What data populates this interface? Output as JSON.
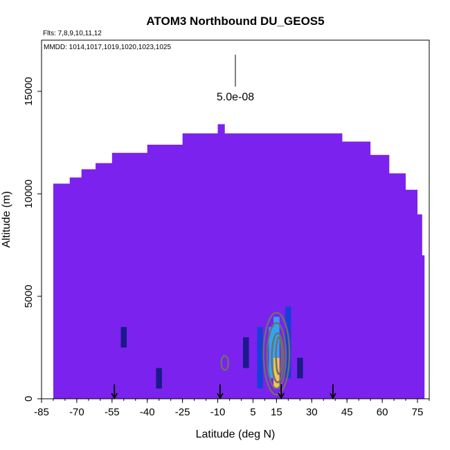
{
  "chart_data": {
    "type": "heatmap",
    "title": "ATOM3 Northbound DU_GEOS5",
    "annotations": {
      "flights": "Flts: 7,8,9,10,11,12",
      "dates": "MMDD: 1014,1017,1019,1020,1023,1025",
      "scale_label": "5.0e-08"
    },
    "xlabel": "Latitude (deg N)",
    "ylabel": "Altitude (m)",
    "xlim": [
      -85,
      80
    ],
    "ylim": [
      0,
      17500
    ],
    "x_ticks": [
      -85,
      -70,
      -55,
      -40,
      -25,
      -10,
      5,
      15,
      30,
      45,
      60,
      75
    ],
    "x_tick_labels": [
      "-85",
      "-70",
      "-55",
      "-40",
      "-25",
      "-10",
      "5",
      "15",
      "30",
      "45",
      "60",
      "75"
    ],
    "y_ticks": [
      0,
      5000,
      10000,
      15000
    ],
    "y_tick_labels": [
      "0",
      "5000",
      "10000",
      "15000"
    ],
    "grid": false,
    "colors": {
      "background_field": "#7b22ee",
      "low": "#1a1a8a",
      "mid": "#1840d8",
      "high": "#2ea6ee",
      "peak": "#f2c64a",
      "contour": "#6e6e6e"
    },
    "domain_top_profile": [
      {
        "lat": -80,
        "alt": 10500
      },
      {
        "lat": -73,
        "alt": 10800
      },
      {
        "lat": -68,
        "alt": 11200
      },
      {
        "lat": -62,
        "alt": 11500
      },
      {
        "lat": -55,
        "alt": 12000
      },
      {
        "lat": -40,
        "alt": 12400
      },
      {
        "lat": -25,
        "alt": 12950
      },
      {
        "lat": -12,
        "alt": 12950
      },
      {
        "lat": -10,
        "alt": 13400
      },
      {
        "lat": -7,
        "alt": 12950
      },
      {
        "lat": 40,
        "alt": 12950
      },
      {
        "lat": 43,
        "alt": 12550
      },
      {
        "lat": 55,
        "alt": 11900
      },
      {
        "lat": 63,
        "alt": 11000
      },
      {
        "lat": 70,
        "alt": 10200
      },
      {
        "lat": 75,
        "alt": 9000
      },
      {
        "lat": 77,
        "alt": 7000
      },
      {
        "lat": 78,
        "alt": 0
      }
    ],
    "enhanced_cells": [
      {
        "lat": 15,
        "alt_min": 500,
        "alt_max": 4000,
        "level": "high"
      },
      {
        "lat": 13,
        "alt_min": 1000,
        "alt_max": 3500,
        "level": "high"
      },
      {
        "lat": 15,
        "alt_min": 500,
        "alt_max": 2000,
        "level": "peak"
      },
      {
        "lat": 8,
        "alt_min": 500,
        "alt_max": 3500,
        "level": "mid"
      },
      {
        "lat": 20,
        "alt_min": 1000,
        "alt_max": 4500,
        "level": "mid"
      },
      {
        "lat": 2,
        "alt_min": 1500,
        "alt_max": 3000,
        "level": "low"
      },
      {
        "lat": 25,
        "alt_min": 1000,
        "alt_max": 2000,
        "level": "low"
      },
      {
        "lat": -35,
        "alt_min": 500,
        "alt_max": 1500,
        "level": "low"
      },
      {
        "lat": -50,
        "alt_min": 2500,
        "alt_max": 3500,
        "level": "low"
      }
    ],
    "flight_markers_lat": [
      -54,
      -9,
      17,
      39
    ]
  }
}
